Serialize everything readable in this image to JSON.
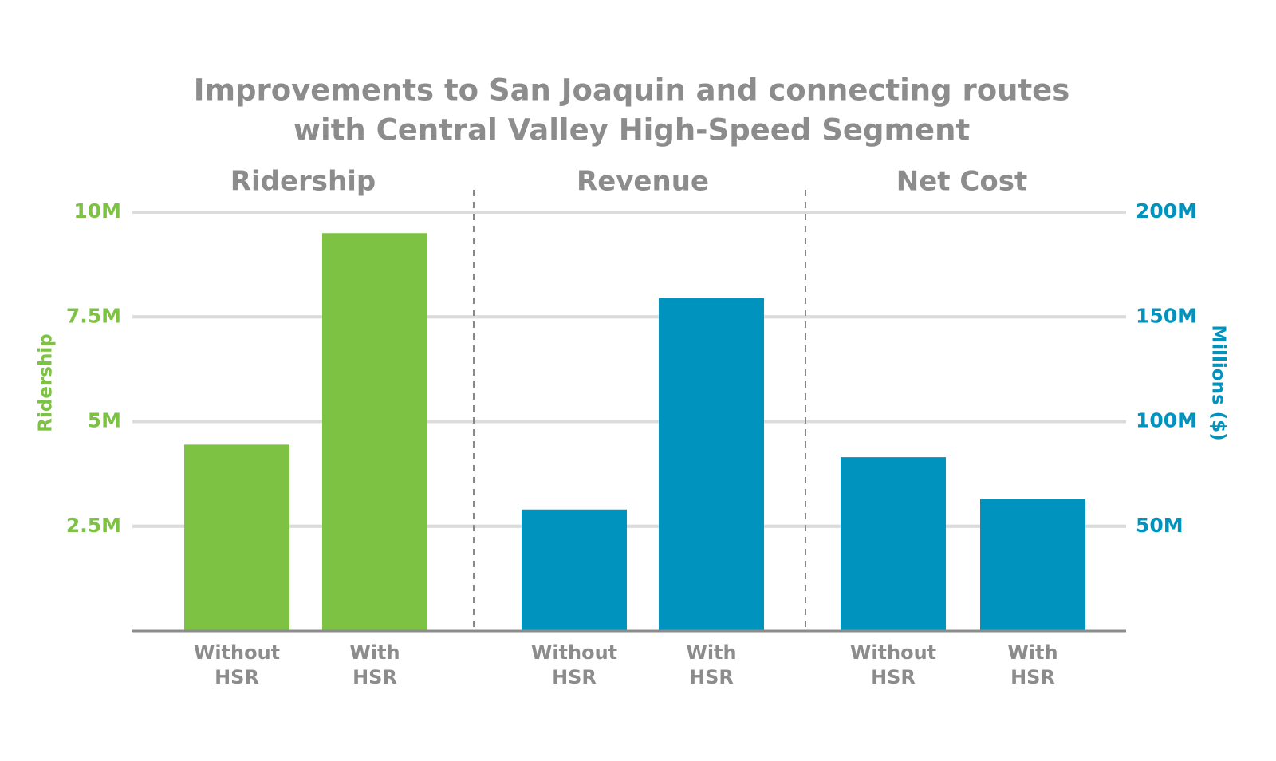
{
  "chart_data": {
    "type": "bar",
    "title": [
      "Improvements to San Joaquin and connecting routes",
      "with Central Valley High-Speed Segment"
    ],
    "ylabel": "Ridership",
    "y2label": "Millions ($)",
    "ylim": [
      0,
      10
    ],
    "yticks": [
      {
        "value": 2.5,
        "label": "2.5M"
      },
      {
        "value": 5,
        "label": "5M"
      },
      {
        "value": 7.5,
        "label": "7.5M"
      },
      {
        "value": 10,
        "label": "10M"
      }
    ],
    "y2lim": [
      0,
      200
    ],
    "y2ticks": [
      {
        "value": 50,
        "label": "50M"
      },
      {
        "value": 100,
        "label": "100M"
      },
      {
        "value": 150,
        "label": "150M"
      },
      {
        "value": 200,
        "label": "200M"
      }
    ],
    "grid": true,
    "panels": [
      {
        "name": "Ridership",
        "axis": "y",
        "color": "#7dc242",
        "categories": [
          "Without HSR",
          "With HSR"
        ],
        "values": [
          4.45,
          9.5
        ]
      },
      {
        "name": "Revenue",
        "axis": "y2",
        "color": "#0093be",
        "categories": [
          "Without HSR",
          "With HSR"
        ],
        "values": [
          58,
          159
        ]
      },
      {
        "name": "Net Cost",
        "axis": "y2",
        "color": "#0093be",
        "categories": [
          "Without HSR",
          "With HSR"
        ],
        "values": [
          83,
          63
        ]
      }
    ]
  }
}
